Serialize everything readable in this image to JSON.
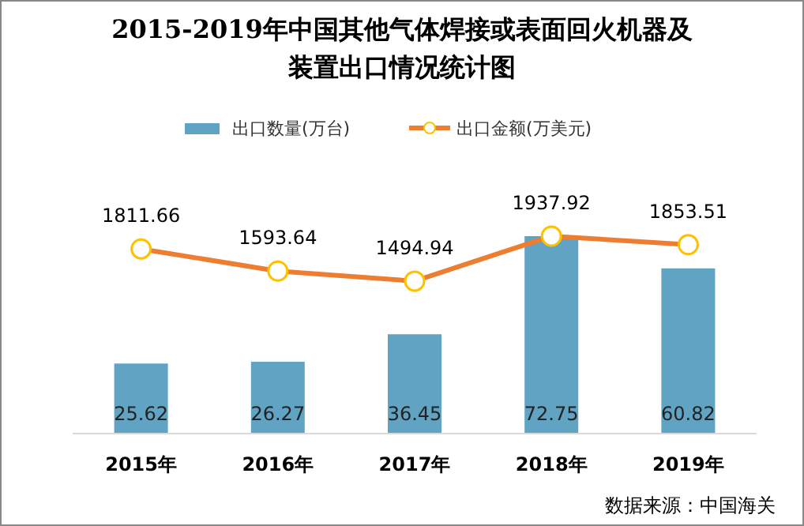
{
  "chart_data": {
    "type": "bar",
    "title": "2015-2019年中国其他气体焊接或表面回火机器及装置出口情况统计图",
    "categories": [
      "2015年",
      "2016年",
      "2017年",
      "2018年",
      "2019年"
    ],
    "series": [
      {
        "name": "出口数量(万台)",
        "color": "#60a3c3",
        "values": [
          25.62,
          26.27,
          36.45,
          72.75,
          60.82
        ]
      },
      {
        "name": "出口金额(万美元)",
        "type": "line",
        "axis": "y2",
        "color": "#ed7d31",
        "values": [
          1811.66,
          1593.64,
          1494.94,
          1937.92,
          1853.51
        ]
      }
    ],
    "data_labels": true,
    "legend": "top",
    "marker": "circle",
    "annotations": [
      "数据来源：中国海关"
    ]
  }
}
